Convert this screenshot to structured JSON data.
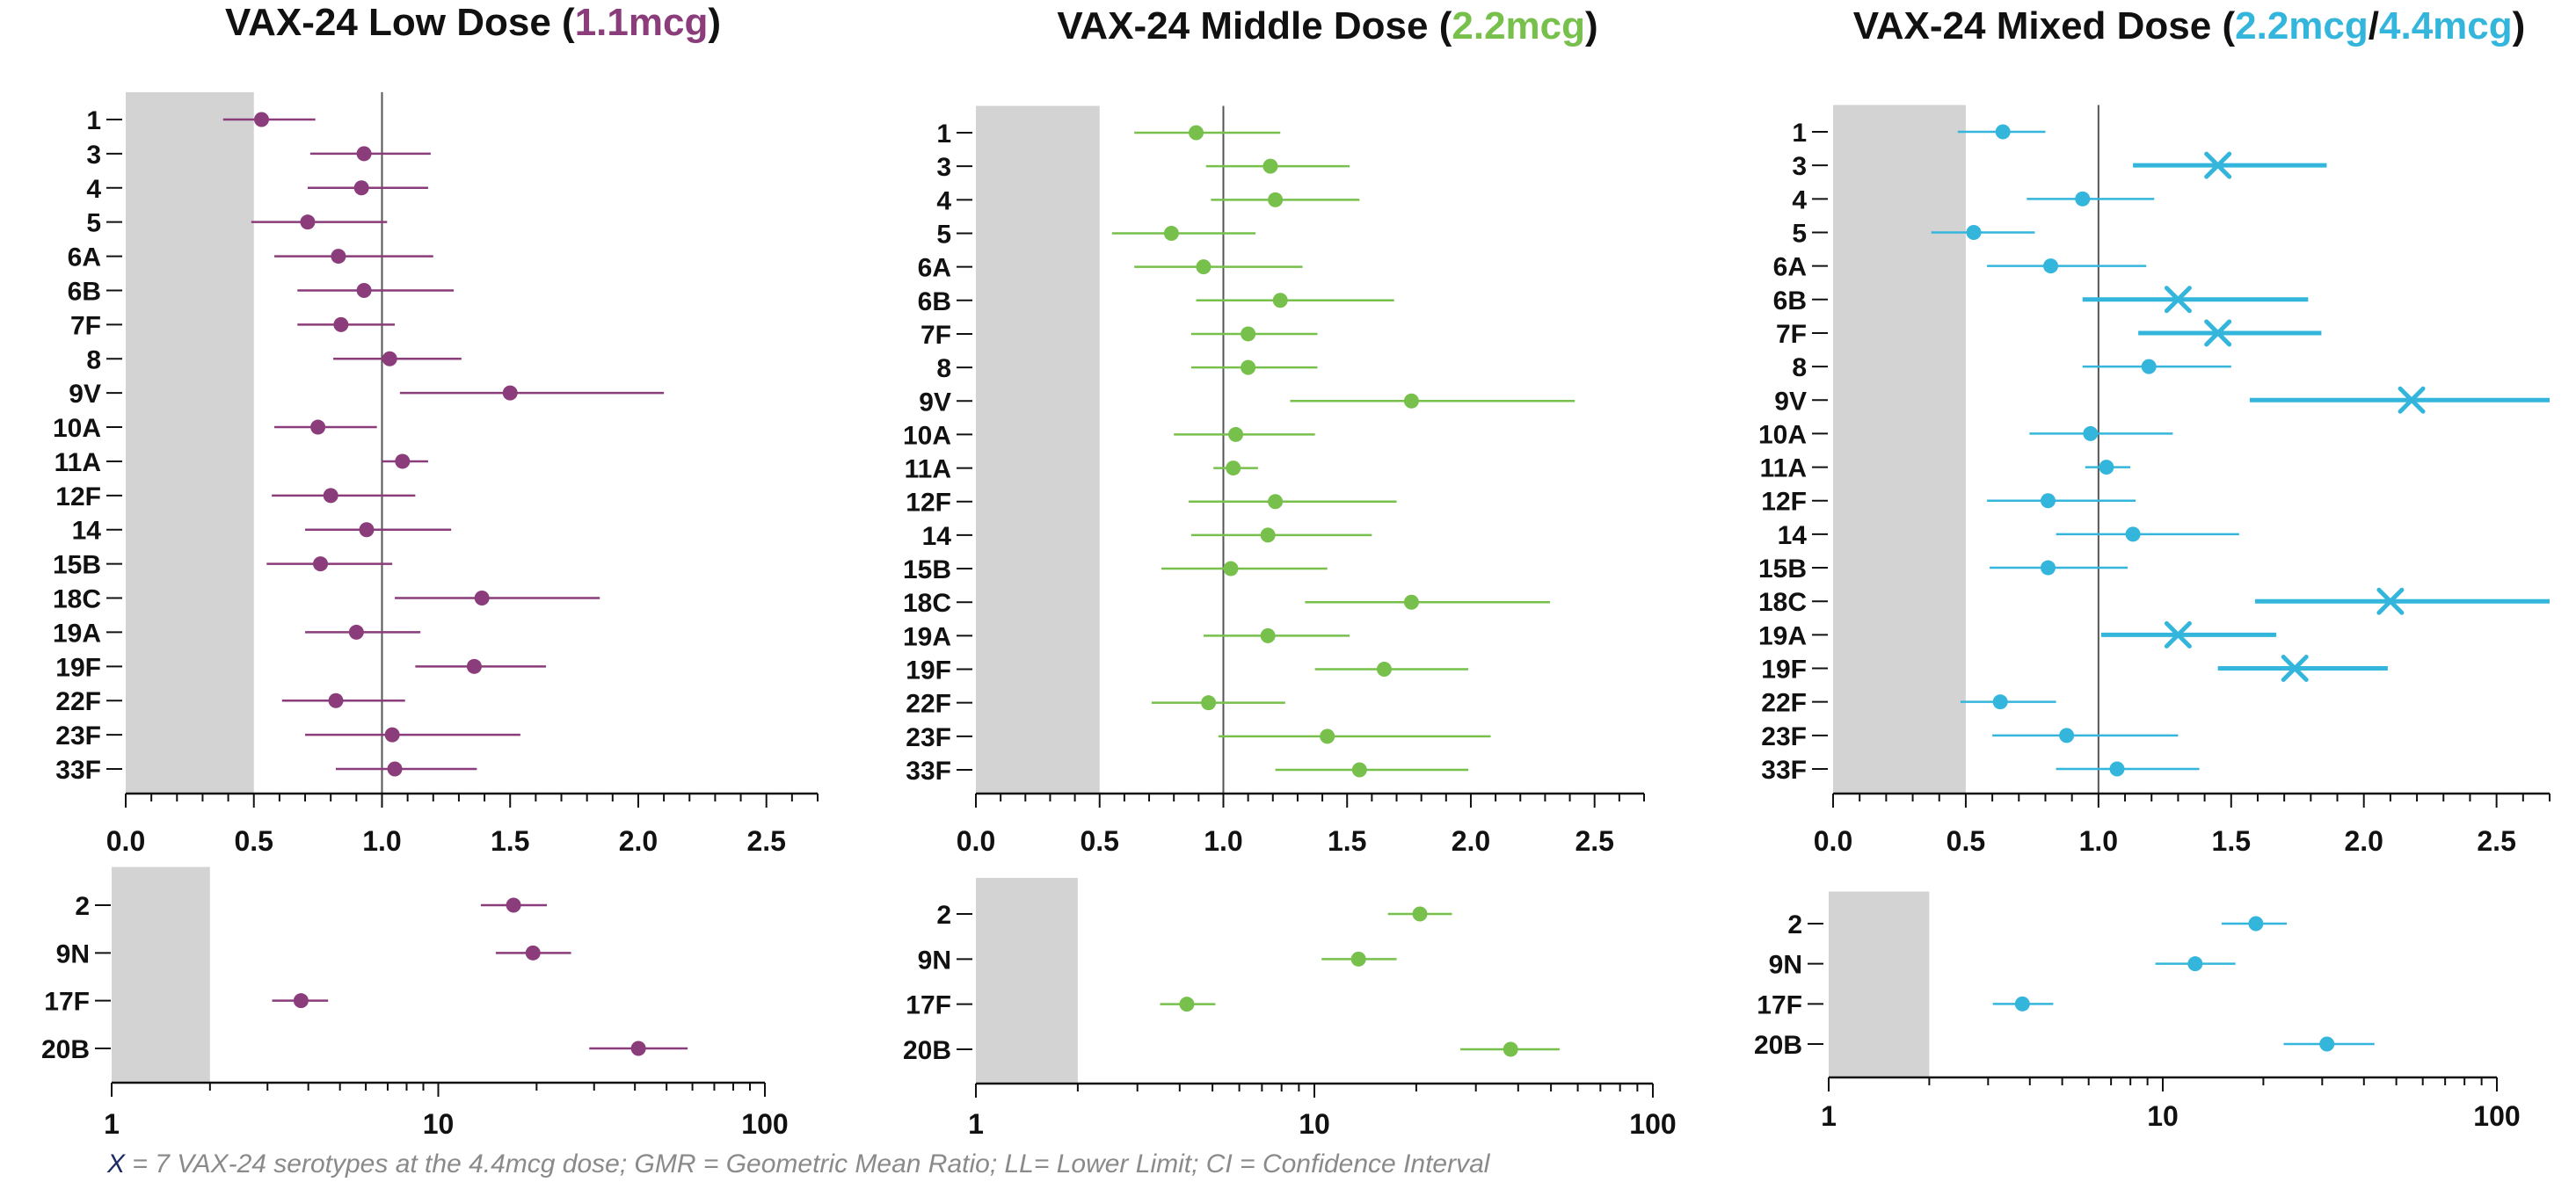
{
  "colors": {
    "low": "#8B3C7A",
    "middle": "#77C04B",
    "mixed": "#34B6DC",
    "band": "#d3d3d3",
    "axis": "#111111",
    "reference": "#555555"
  },
  "footnote": {
    "x_symbol": "X",
    "text": " = 7 VAX-24 serotypes at the 4.4mcg dose; GMR = Geometric Mean Ratio; LL= Lower Limit; CI = Confidence Interval"
  },
  "chart_data": [
    {
      "id": "low-main",
      "type": "forest",
      "title_parts": [
        {
          "text": "VAX-24 Low Dose (",
          "color": "#111111"
        },
        {
          "text": "1.1mcg",
          "color": "#8B3C7A"
        },
        {
          "text": ")",
          "color": "#111111"
        }
      ],
      "xscale": "linear",
      "xlim": [
        0,
        2.7
      ],
      "xticks": [
        "0.0",
        "0.5",
        "1.0",
        "1.5",
        "2.0",
        "2.5"
      ],
      "reference_line": 1.0,
      "shaded_range": [
        0,
        0.5
      ],
      "categories": [
        "1",
        "3",
        "4",
        "5",
        "6A",
        "6B",
        "7F",
        "8",
        "9V",
        "10A",
        "11A",
        "12F",
        "14",
        "15B",
        "18C",
        "19A",
        "19F",
        "22F",
        "23F",
        "33F"
      ],
      "series": [
        {
          "name": "1.1mcg",
          "color": "#8B3C7A",
          "marker": "dot",
          "points": [
            {
              "est": 0.53,
              "lo": 0.38,
              "hi": 0.74
            },
            {
              "est": 0.93,
              "lo": 0.72,
              "hi": 1.19
            },
            {
              "est": 0.92,
              "lo": 0.71,
              "hi": 1.18
            },
            {
              "est": 0.71,
              "lo": 0.49,
              "hi": 1.02
            },
            {
              "est": 0.83,
              "lo": 0.58,
              "hi": 1.2
            },
            {
              "est": 0.93,
              "lo": 0.67,
              "hi": 1.28
            },
            {
              "est": 0.84,
              "lo": 0.67,
              "hi": 1.05
            },
            {
              "est": 1.03,
              "lo": 0.81,
              "hi": 1.31
            },
            {
              "est": 1.5,
              "lo": 1.07,
              "hi": 2.1
            },
            {
              "est": 0.75,
              "lo": 0.58,
              "hi": 0.98
            },
            {
              "est": 1.08,
              "lo": 1.0,
              "hi": 1.18
            },
            {
              "est": 0.8,
              "lo": 0.57,
              "hi": 1.13
            },
            {
              "est": 0.94,
              "lo": 0.7,
              "hi": 1.27
            },
            {
              "est": 0.76,
              "lo": 0.55,
              "hi": 1.04
            },
            {
              "est": 1.39,
              "lo": 1.05,
              "hi": 1.85
            },
            {
              "est": 0.9,
              "lo": 0.7,
              "hi": 1.15
            },
            {
              "est": 1.36,
              "lo": 1.13,
              "hi": 1.64
            },
            {
              "est": 0.82,
              "lo": 0.61,
              "hi": 1.09
            },
            {
              "est": 1.04,
              "lo": 0.7,
              "hi": 1.54
            },
            {
              "est": 1.05,
              "lo": 0.82,
              "hi": 1.37
            }
          ]
        }
      ]
    },
    {
      "id": "middle-main",
      "type": "forest",
      "title_parts": [
        {
          "text": "VAX-24 Middle Dose (",
          "color": "#111111"
        },
        {
          "text": "2.2mcg",
          "color": "#77C04B"
        },
        {
          "text": ")",
          "color": "#111111"
        }
      ],
      "xscale": "linear",
      "xlim": [
        0,
        2.7
      ],
      "xticks": [
        "0.0",
        "0.5",
        "1.0",
        "1.5",
        "2.0",
        "2.5"
      ],
      "reference_line": 1.0,
      "shaded_range": [
        0,
        0.5
      ],
      "categories": [
        "1",
        "3",
        "4",
        "5",
        "6A",
        "6B",
        "7F",
        "8",
        "9V",
        "10A",
        "11A",
        "12F",
        "14",
        "15B",
        "18C",
        "19A",
        "19F",
        "22F",
        "23F",
        "33F"
      ],
      "series": [
        {
          "name": "2.2mcg",
          "color": "#77C04B",
          "marker": "dot",
          "points": [
            {
              "est": 0.89,
              "lo": 0.64,
              "hi": 1.23
            },
            {
              "est": 1.19,
              "lo": 0.93,
              "hi": 1.51
            },
            {
              "est": 1.21,
              "lo": 0.95,
              "hi": 1.55
            },
            {
              "est": 0.79,
              "lo": 0.55,
              "hi": 1.13
            },
            {
              "est": 0.92,
              "lo": 0.64,
              "hi": 1.32
            },
            {
              "est": 1.23,
              "lo": 0.89,
              "hi": 1.69
            },
            {
              "est": 1.1,
              "lo": 0.87,
              "hi": 1.38
            },
            {
              "est": 1.1,
              "lo": 0.87,
              "hi": 1.38
            },
            {
              "est": 1.76,
              "lo": 1.27,
              "hi": 2.42
            },
            {
              "est": 1.05,
              "lo": 0.8,
              "hi": 1.37
            },
            {
              "est": 1.04,
              "lo": 0.96,
              "hi": 1.14
            },
            {
              "est": 1.21,
              "lo": 0.86,
              "hi": 1.7
            },
            {
              "est": 1.18,
              "lo": 0.87,
              "hi": 1.6
            },
            {
              "est": 1.03,
              "lo": 0.75,
              "hi": 1.42
            },
            {
              "est": 1.76,
              "lo": 1.33,
              "hi": 2.32
            },
            {
              "est": 1.18,
              "lo": 0.92,
              "hi": 1.51
            },
            {
              "est": 1.65,
              "lo": 1.37,
              "hi": 1.99
            },
            {
              "est": 0.94,
              "lo": 0.71,
              "hi": 1.25
            },
            {
              "est": 1.42,
              "lo": 0.98,
              "hi": 2.08
            },
            {
              "est": 1.55,
              "lo": 1.21,
              "hi": 1.99
            }
          ]
        }
      ]
    },
    {
      "id": "mixed-main",
      "type": "forest",
      "title_parts": [
        {
          "text": "VAX-24 Mixed Dose (",
          "color": "#111111"
        },
        {
          "text": "2.2mcg",
          "color": "#34B6DC"
        },
        {
          "text": "/",
          "color": "#111111"
        },
        {
          "text": "4.4mcg",
          "color": "#34B6DC"
        },
        {
          "text": ")",
          "color": "#111111"
        }
      ],
      "xscale": "linear",
      "xlim": [
        0,
        2.7
      ],
      "xticks": [
        "0.0",
        "0.5",
        "1.0",
        "1.5",
        "2.0",
        "2.5"
      ],
      "reference_line": 1.0,
      "shaded_range": [
        0,
        0.5
      ],
      "categories": [
        "1",
        "3",
        "4",
        "5",
        "6A",
        "6B",
        "7F",
        "8",
        "9V",
        "10A",
        "11A",
        "12F",
        "14",
        "15B",
        "18C",
        "19A",
        "19F",
        "22F",
        "23F",
        "33F"
      ],
      "series": [
        {
          "name": "2.2mcg / 4.4mcg",
          "color": "#34B6DC",
          "points": [
            {
              "est": 0.64,
              "lo": 0.47,
              "hi": 0.8,
              "marker": "dot"
            },
            {
              "est": 1.45,
              "lo": 1.13,
              "hi": 1.86,
              "marker": "x"
            },
            {
              "est": 0.94,
              "lo": 0.73,
              "hi": 1.21,
              "marker": "dot"
            },
            {
              "est": 0.53,
              "lo": 0.37,
              "hi": 0.76,
              "marker": "dot"
            },
            {
              "est": 0.82,
              "lo": 0.58,
              "hi": 1.18,
              "marker": "dot"
            },
            {
              "est": 1.3,
              "lo": 0.94,
              "hi": 1.79,
              "marker": "x"
            },
            {
              "est": 1.45,
              "lo": 1.15,
              "hi": 1.84,
              "marker": "x"
            },
            {
              "est": 1.19,
              "lo": 0.94,
              "hi": 1.5,
              "marker": "dot"
            },
            {
              "est": 2.18,
              "lo": 1.57,
              "hi": 2.7,
              "marker": "x"
            },
            {
              "est": 0.97,
              "lo": 0.74,
              "hi": 1.28,
              "marker": "dot"
            },
            {
              "est": 1.03,
              "lo": 0.95,
              "hi": 1.12,
              "marker": "dot"
            },
            {
              "est": 0.81,
              "lo": 0.58,
              "hi": 1.14,
              "marker": "dot"
            },
            {
              "est": 1.13,
              "lo": 0.84,
              "hi": 1.53,
              "marker": "dot"
            },
            {
              "est": 0.81,
              "lo": 0.59,
              "hi": 1.11,
              "marker": "dot"
            },
            {
              "est": 2.1,
              "lo": 1.59,
              "hi": 2.7,
              "marker": "x"
            },
            {
              "est": 1.3,
              "lo": 1.01,
              "hi": 1.67,
              "marker": "x"
            },
            {
              "est": 1.74,
              "lo": 1.45,
              "hi": 2.09,
              "marker": "x"
            },
            {
              "est": 0.63,
              "lo": 0.48,
              "hi": 0.84,
              "marker": "dot"
            },
            {
              "est": 0.88,
              "lo": 0.6,
              "hi": 1.3,
              "marker": "dot"
            },
            {
              "est": 1.07,
              "lo": 0.84,
              "hi": 1.38,
              "marker": "dot"
            }
          ]
        }
      ]
    },
    {
      "id": "low-log",
      "type": "forest",
      "xscale": "log",
      "xlim": [
        1,
        100
      ],
      "xticks": [
        "1",
        "10",
        "100"
      ],
      "shaded_range": [
        1,
        2
      ],
      "categories": [
        "2",
        "9N",
        "17F",
        "20B"
      ],
      "series": [
        {
          "name": "1.1mcg",
          "color": "#8B3C7A",
          "marker": "dot",
          "points": [
            {
              "est": 17.0,
              "lo": 13.5,
              "hi": 21.5
            },
            {
              "est": 19.5,
              "lo": 15.0,
              "hi": 25.5
            },
            {
              "est": 3.8,
              "lo": 3.1,
              "hi": 4.6
            },
            {
              "est": 41.0,
              "lo": 29.0,
              "hi": 58.0
            }
          ]
        }
      ]
    },
    {
      "id": "middle-log",
      "type": "forest",
      "xscale": "log",
      "xlim": [
        1,
        100
      ],
      "xticks": [
        "1",
        "10",
        "100"
      ],
      "shaded_range": [
        1,
        2
      ],
      "categories": [
        "2",
        "9N",
        "17F",
        "20B"
      ],
      "series": [
        {
          "name": "2.2mcg",
          "color": "#77C04B",
          "marker": "dot",
          "points": [
            {
              "est": 20.5,
              "lo": 16.5,
              "hi": 25.5
            },
            {
              "est": 13.5,
              "lo": 10.5,
              "hi": 17.5
            },
            {
              "est": 4.2,
              "lo": 3.5,
              "hi": 5.1
            },
            {
              "est": 38.0,
              "lo": 27.0,
              "hi": 53.0
            }
          ]
        }
      ]
    },
    {
      "id": "mixed-log",
      "type": "forest",
      "xscale": "log",
      "xlim": [
        1,
        100
      ],
      "xticks": [
        "1",
        "10",
        "100"
      ],
      "shaded_range": [
        1,
        2
      ],
      "categories": [
        "2",
        "9N",
        "17F",
        "20B"
      ],
      "series": [
        {
          "name": "2.2mcg / 4.4mcg",
          "color": "#34B6DC",
          "marker": "dot",
          "points": [
            {
              "est": 19.0,
              "lo": 15.0,
              "hi": 23.5
            },
            {
              "est": 12.5,
              "lo": 9.5,
              "hi": 16.5
            },
            {
              "est": 3.8,
              "lo": 3.1,
              "hi": 4.7
            },
            {
              "est": 31.0,
              "lo": 23.0,
              "hi": 43.0
            }
          ]
        }
      ]
    }
  ]
}
